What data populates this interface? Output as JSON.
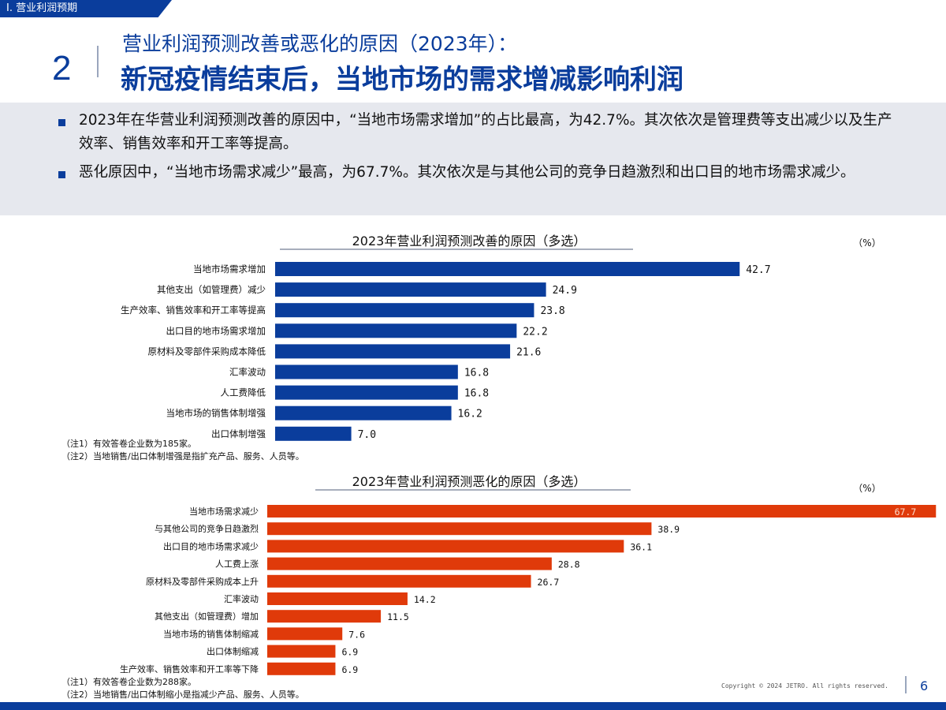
{
  "section_tag": "Ⅰ. 营业利润预期",
  "slide_number": "2",
  "title_line1": "营业利润预测改善或恶化的原因（2023年）：",
  "title_line2": "新冠疫情结束后，当地市场的需求增减影响利润",
  "bullets": [
    "2023年在华营业利润预测改善的原因中，“当地市场需求增加”的占比最高，为42.7%。其次依次是管理费等支出减少以及生产效率、销售效率和开工率等提高。",
    "恶化原因中，“当地市场需求减少”最高，为67.7%。其次依次是与其他公司的竞争日趋激烈和出口目的地市场需求减少。"
  ],
  "chart_data": [
    {
      "type": "bar",
      "orientation": "horizontal",
      "title": "2023年营业利润预测改善的原因（多选）",
      "unit": "（%）",
      "color": "#0a3d9c",
      "categories": [
        "当地市场需求增加",
        "其他支出（如管理费）减少",
        "生产效率、销售效率和开工率等提高",
        "出口目的地市场需求增加",
        "原材料及零部件采购成本降低",
        "汇率波动",
        "人工费降低",
        "当地市场的销售体制增强",
        "出口体制增强"
      ],
      "values": [
        42.7,
        24.9,
        23.8,
        22.2,
        21.6,
        16.8,
        16.8,
        16.2,
        7.0
      ],
      "labels": [
        "42.7",
        "24.9",
        "23.8",
        "22.2",
        "21.6",
        "16.8",
        "16.8",
        "16.2",
        "7.0"
      ],
      "notes": [
        "（注1）有效答卷企业数为185家。",
        "（注2）当地销售/出口体制增强是指扩充产品、服务、人员等。"
      ]
    },
    {
      "type": "bar",
      "orientation": "horizontal",
      "title": "2023年营业利润预测恶化的原因（多选）",
      "unit": "（%）",
      "color": "#e03a0a",
      "categories": [
        "当地市场需求减少",
        "与其他公司的竞争日趋激烈",
        "出口目的地市场需求减少",
        "人工费上涨",
        "原材料及零部件采购成本上升",
        "汇率波动",
        "其他支出（如管理费）增加",
        "当地市场的销售体制缩减",
        "出口体制缩减",
        "生产效率、销售效率和开工率等下降"
      ],
      "values": [
        67.7,
        38.9,
        36.1,
        28.8,
        26.7,
        14.2,
        11.5,
        7.6,
        6.9,
        6.9
      ],
      "labels": [
        "67.7",
        "38.9",
        "36.1",
        "28.8",
        "26.7",
        "14.2",
        "11.5",
        "7.6",
        "6.9",
        "6.9"
      ],
      "notes": [
        "（注1）有效答卷企业数为288家。",
        "（注2）当地销售/出口体制缩小是指减少产品、服务、人员等。"
      ]
    }
  ],
  "footer": {
    "copyright": "Copyright © 2024 JETRO. All rights reserved.",
    "page": "6"
  }
}
